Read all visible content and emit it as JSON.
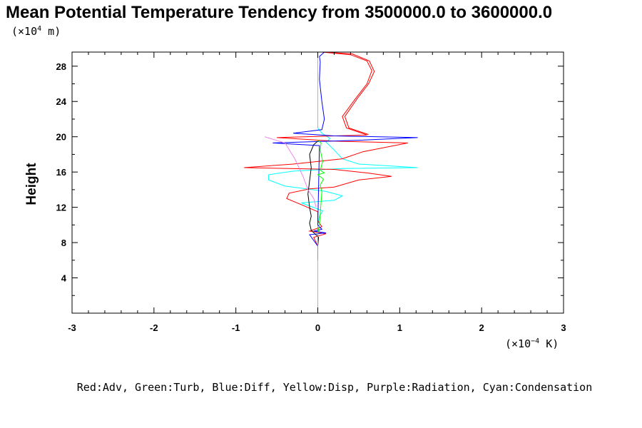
{
  "chart_data": {
    "type": "line",
    "title": "Mean Potential Temperature Tendency from 3500000.0 to 3600000.0",
    "ylabel": "Height",
    "y_unit": {
      "prefix": "(×10",
      "exp": "4",
      "suffix": " m)"
    },
    "x_unit": {
      "prefix": "(×10",
      "exp": "−4",
      "suffix": " K)"
    },
    "xlim": [
      -3,
      3
    ],
    "ylim": [
      0,
      29.6
    ],
    "xticks": [
      -3,
      -2,
      -1,
      0,
      1,
      2,
      3
    ],
    "yticks": [
      4,
      8,
      12,
      16,
      20,
      24,
      28
    ],
    "legend_text": "Red:Adv, Green:Turb, Blue:Diff, Yellow:Disp, Purple:Radiation, Cyan:Condensation",
    "series": [
      {
        "color": "#00ffff",
        "points": [
          [
            0,
            0
          ],
          [
            0,
            6
          ],
          [
            0,
            9
          ],
          [
            0,
            10
          ],
          [
            0.02,
            11
          ],
          [
            0.06,
            11.6
          ],
          [
            -0.2,
            12.5
          ],
          [
            0.2,
            12.8
          ],
          [
            0.3,
            13.3
          ],
          [
            0.1,
            13.8
          ],
          [
            -0.4,
            14.4
          ],
          [
            -0.6,
            15.1
          ],
          [
            -0.6,
            15.7
          ],
          [
            -0.3,
            16.1
          ],
          [
            0.3,
            16.4
          ],
          [
            1.22,
            16.5
          ],
          [
            0.5,
            16.9
          ],
          [
            0.3,
            17.5
          ],
          [
            0.2,
            18.5
          ],
          [
            0.1,
            19.4
          ],
          [
            0.15,
            19.8
          ],
          [
            0.05,
            20.4
          ],
          [
            0,
            21
          ],
          [
            0,
            29.6
          ]
        ]
      },
      {
        "color": "#ff0000",
        "points": [
          [
            0,
            7.6
          ],
          [
            -0.05,
            8.6
          ],
          [
            0.1,
            9
          ],
          [
            -0.1,
            9.3
          ],
          [
            0.05,
            9.8
          ],
          [
            0,
            10.5
          ],
          [
            0,
            11.5
          ],
          [
            -0.2,
            12.3
          ],
          [
            -0.38,
            13
          ],
          [
            -0.35,
            13.6
          ],
          [
            -0.1,
            14.1
          ],
          [
            0.2,
            14.3
          ],
          [
            0.5,
            15.1
          ],
          [
            0.9,
            15.5
          ],
          [
            0.6,
            15.9
          ],
          [
            0.2,
            16.3
          ],
          [
            -0.9,
            16.5
          ],
          [
            -0.3,
            16.9
          ],
          [
            0.3,
            17.5
          ],
          [
            0.55,
            18.3
          ],
          [
            1.1,
            19.3
          ],
          [
            0.2,
            19.5
          ],
          [
            -0.5,
            19.9
          ],
          [
            0.6,
            20.2
          ],
          [
            0.35,
            21
          ],
          [
            0.3,
            22.3
          ],
          [
            0.45,
            24.2
          ],
          [
            0.6,
            26
          ],
          [
            0.66,
            27.5
          ],
          [
            0.6,
            28.6
          ],
          [
            0.4,
            29.3
          ],
          [
            0.05,
            29.6
          ]
        ]
      },
      {
        "color": "#ff0000",
        "points": [
          [
            0.06,
            29.6
          ],
          [
            0.42,
            29.4
          ],
          [
            0.63,
            28.6
          ],
          [
            0.69,
            27.4
          ],
          [
            0.62,
            26
          ],
          [
            0.48,
            24.3
          ],
          [
            0.33,
            22.3
          ],
          [
            0.38,
            21
          ],
          [
            0.62,
            20.25
          ]
        ]
      },
      {
        "color": "#0000ff",
        "points": [
          [
            0,
            7.6
          ],
          [
            -0.1,
            8.9
          ],
          [
            0.1,
            9.1
          ],
          [
            -0.05,
            9.3
          ],
          [
            0.05,
            9.5
          ],
          [
            0,
            10
          ],
          [
            0.02,
            19
          ],
          [
            -0.55,
            19.3
          ],
          [
            0.5,
            19.6
          ],
          [
            1.22,
            19.9
          ],
          [
            0.2,
            20.1
          ],
          [
            -0.3,
            20.4
          ],
          [
            0.05,
            20.8
          ],
          [
            0.08,
            22
          ],
          [
            0.05,
            24
          ],
          [
            0.02,
            26.5
          ],
          [
            0.03,
            28.5
          ],
          [
            0.02,
            29.1
          ],
          [
            0.08,
            29.6
          ]
        ]
      },
      {
        "color": "#000000",
        "points": [
          [
            0,
            7.6
          ],
          [
            0.01,
            8.6
          ],
          [
            -0.08,
            9.4
          ],
          [
            -0.1,
            10.2
          ],
          [
            -0.08,
            11
          ],
          [
            -0.1,
            12
          ],
          [
            -0.12,
            13.5
          ],
          [
            -0.1,
            15
          ],
          [
            -0.08,
            16.5
          ],
          [
            -0.1,
            18
          ],
          [
            -0.05,
            19.1
          ],
          [
            0,
            19.5
          ]
        ]
      },
      {
        "color": "#00ff00",
        "points": [
          [
            0,
            6
          ],
          [
            0,
            9
          ],
          [
            0.02,
            10
          ],
          [
            0.05,
            13.8
          ],
          [
            0.03,
            14.5
          ],
          [
            0.07,
            15.2
          ],
          [
            0,
            15.7
          ],
          [
            0.08,
            15.9
          ],
          [
            0.03,
            16.2
          ],
          [
            0.06,
            17.2
          ],
          [
            0.03,
            18.5
          ],
          [
            0.04,
            19.3
          ],
          [
            0,
            19.6
          ]
        ]
      },
      {
        "color": "#ee82ee",
        "points": [
          [
            -0.65,
            20
          ],
          [
            -0.4,
            19.3
          ],
          [
            -0.28,
            17.5
          ],
          [
            -0.18,
            15.5
          ],
          [
            -0.12,
            14
          ],
          [
            -0.05,
            13
          ],
          [
            -0.02,
            12
          ]
        ]
      }
    ]
  }
}
